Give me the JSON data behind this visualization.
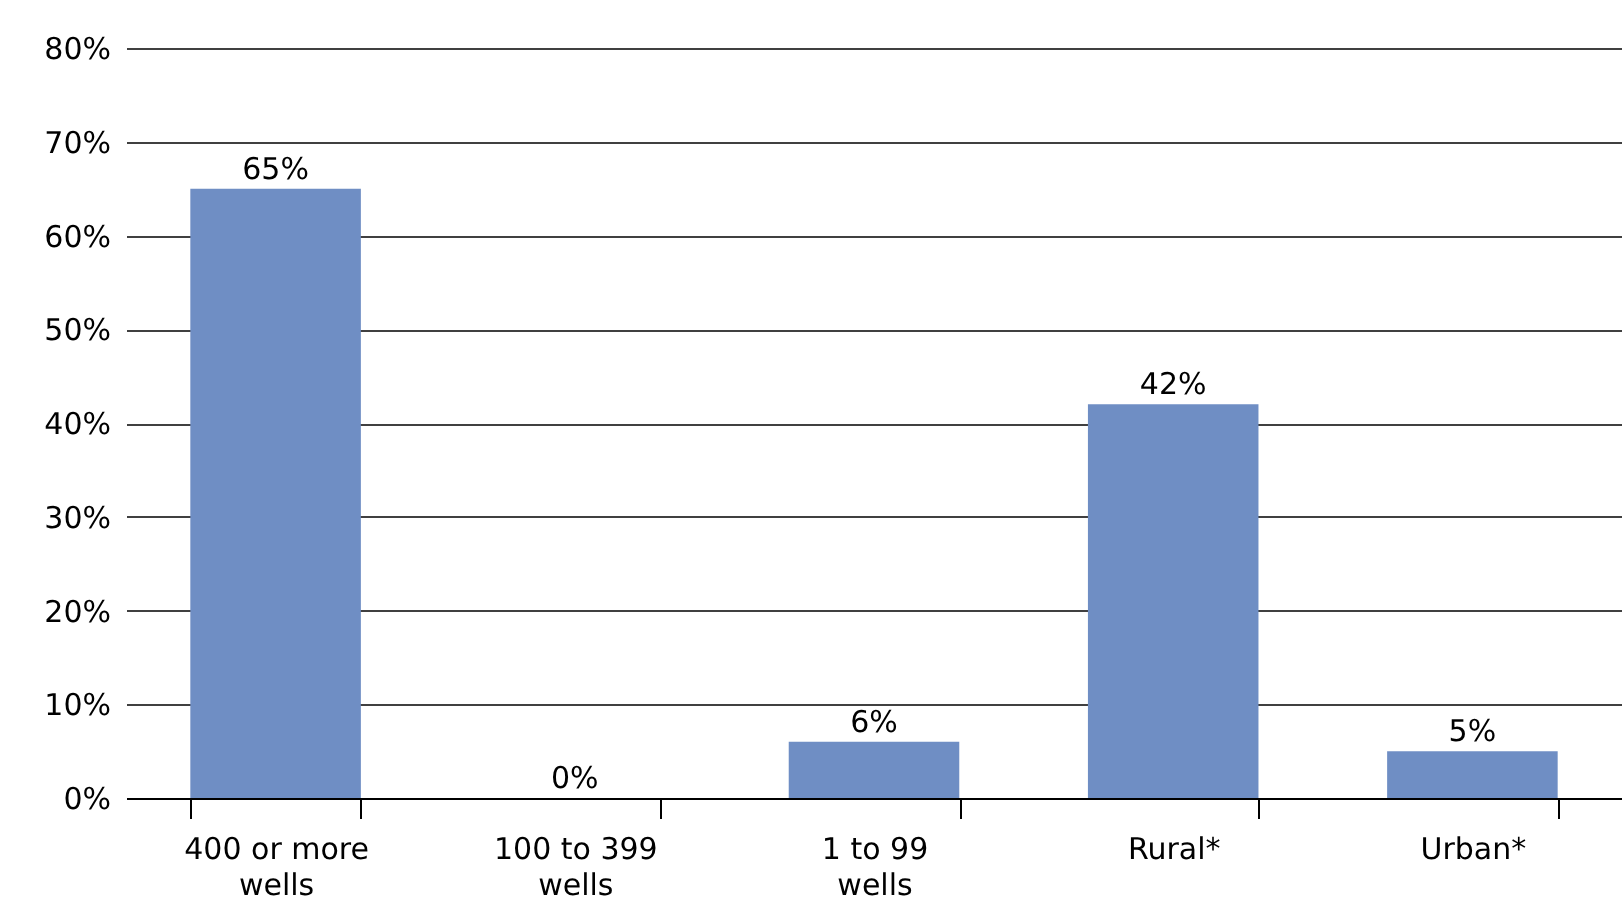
{
  "chart_data": {
    "type": "bar",
    "categories": [
      "400 or more wells",
      "100 to 399 wells",
      "1 to 99 wells",
      "Rural*",
      "Urban*"
    ],
    "values": [
      65,
      0,
      6,
      42,
      5
    ],
    "value_labels": [
      "65%",
      "0%",
      "6%",
      "42%",
      "5%"
    ],
    "color": "#6f8ec4",
    "ylim": [
      0,
      80
    ],
    "yticks": [
      {
        "value": 0,
        "label": "0%"
      },
      {
        "value": 10,
        "label": "10%"
      },
      {
        "value": 20,
        "label": "20%"
      },
      {
        "value": 30,
        "label": "30%"
      },
      {
        "value": 40,
        "label": "40%"
      },
      {
        "value": 50,
        "label": "50%"
      },
      {
        "value": 60,
        "label": "60%"
      },
      {
        "value": 70,
        "label": "70%"
      },
      {
        "value": 80,
        "label": "80%"
      }
    ],
    "grid": "y"
  }
}
